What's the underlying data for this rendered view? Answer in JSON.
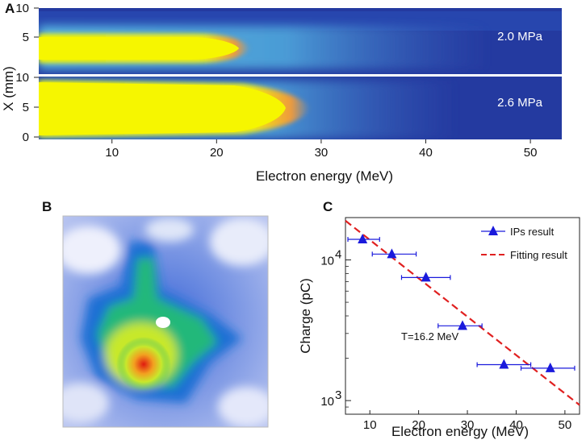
{
  "panels": {
    "a": {
      "label": "A"
    },
    "b": {
      "label": "B"
    },
    "c": {
      "label": "C"
    }
  },
  "chart_data": [
    {
      "type": "heatmap",
      "panel": "A",
      "xlabel": "Electron energy (MeV)",
      "ylabel": "X (mm)",
      "x_ticks": [
        10,
        20,
        30,
        40,
        50
      ],
      "xlim": [
        3,
        53
      ],
      "strips": [
        {
          "label": "2.0 MPa",
          "y_ticks": [
            10,
            5
          ],
          "ylim": [
            0,
            10
          ],
          "bright_core_end_mev": 21
        },
        {
          "label": "2.6 MPa",
          "y_ticks": [
            10,
            5,
            0
          ],
          "ylim": [
            0,
            10
          ],
          "bright_core_end_mev": 25
        }
      ],
      "colors": {
        "background": "#233a9c",
        "core": "#f2f200",
        "edge": "#e89040"
      }
    },
    {
      "type": "heatmap",
      "panel": "B",
      "description_colors": [
        "#ffffff",
        "#6f86e8",
        "#1b6fd4",
        "#22b87a",
        "#c7e82c",
        "#f2a020",
        "#e82010"
      ]
    },
    {
      "type": "scatter",
      "panel": "C",
      "xlabel": "Electron energy (MeV)",
      "ylabel": "Charge (pC)",
      "yscale": "log",
      "xlim": [
        5,
        53
      ],
      "ylim": [
        800,
        20000
      ],
      "x_ticks": [
        10,
        20,
        30,
        40,
        50
      ],
      "y_tick_labels": [
        {
          "value": 10000,
          "base": "10",
          "exp": "4"
        },
        {
          "value": 1000,
          "base": "10",
          "exp": "3"
        }
      ],
      "annotation": "T=16.2 MeV",
      "series": [
        {
          "name": "IPs result",
          "color": "#1a1adc",
          "marker": "triangle",
          "points": [
            {
              "x": 8.5,
              "y": 14000,
              "xerr_low": 5.5,
              "xerr_high": 12
            },
            {
              "x": 14.5,
              "y": 11000,
              "xerr_low": 10.5,
              "xerr_high": 19.5
            },
            {
              "x": 21.5,
              "y": 7500,
              "xerr_low": 16.5,
              "xerr_high": 26.5
            },
            {
              "x": 29,
              "y": 3400,
              "xerr_low": 24,
              "xerr_high": 33
            },
            {
              "x": 37.5,
              "y": 1800,
              "xerr_low": 32,
              "xerr_high": 43
            },
            {
              "x": 47,
              "y": 1700,
              "xerr_low": 41,
              "xerr_high": 52
            }
          ]
        },
        {
          "name": "Fitting result",
          "color": "#e02020",
          "style": "dashed",
          "line": {
            "x0": 5,
            "y0": 19000,
            "x1": 53,
            "y1": 930
          }
        }
      ]
    }
  ]
}
